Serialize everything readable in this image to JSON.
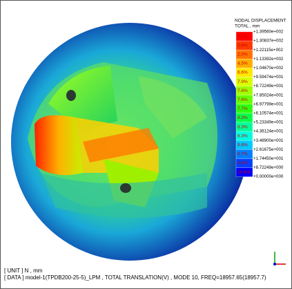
{
  "legend": {
    "title": "NODAL DISPLACEMENT",
    "subtitle": "TOTAL , mm",
    "levels": [
      "+1.39560e+002",
      "+1.30837e+002",
      "+1.22115e+002",
      "+1.13392e+002",
      "+1.04670e+002",
      "+9.59474e+001",
      "+8.72249e+001",
      "+7.85024e+001",
      "+6.97799e+001",
      "+6.10574e+001",
      "+5.23349e+001",
      "+4.36124e+001",
      "+3.48900e+001",
      "+2.61675e+001",
      "+1.74450e+001",
      "+8.72249e+000",
      "+0.00000e+000"
    ],
    "bands": [
      {
        "pct": "0.2%",
        "color": "#ff0000"
      },
      {
        "pct": "0.6%",
        "color": "#ff3a00"
      },
      {
        "pct": "2.0%",
        "color": "#ff7400"
      },
      {
        "pct": "4.5%",
        "color": "#ffae00"
      },
      {
        "pct": "6.6%",
        "color": "#ffe800"
      },
      {
        "pct": "7.9%",
        "color": "#d8ff00"
      },
      {
        "pct": "7.6%",
        "color": "#9eff00"
      },
      {
        "pct": "7.6%",
        "color": "#64ff00"
      },
      {
        "pct": "7.7%",
        "color": "#2aff10"
      },
      {
        "pct": "8.3%",
        "color": "#00ff4a"
      },
      {
        "pct": "8.3%",
        "color": "#00ff9a"
      },
      {
        "pct": "8.3%",
        "color": "#00ffe0"
      },
      {
        "pct": "8.6%",
        "color": "#00c8ff"
      },
      {
        "pct": "6.7%",
        "color": "#0080ff"
      },
      {
        "pct": "3.8%",
        "color": "#0040ff"
      },
      {
        "pct": "10.8%",
        "color": "#0000ff"
      }
    ]
  },
  "footer": {
    "unit": "[ UNIT ] N , mm",
    "data": "[ DATA ] model-1(TPDB200-25-5)_LPM ,  TOTAL TRANSLATION(V) ,  MODE 10, FREQ=18957.65(18957.7)"
  }
}
